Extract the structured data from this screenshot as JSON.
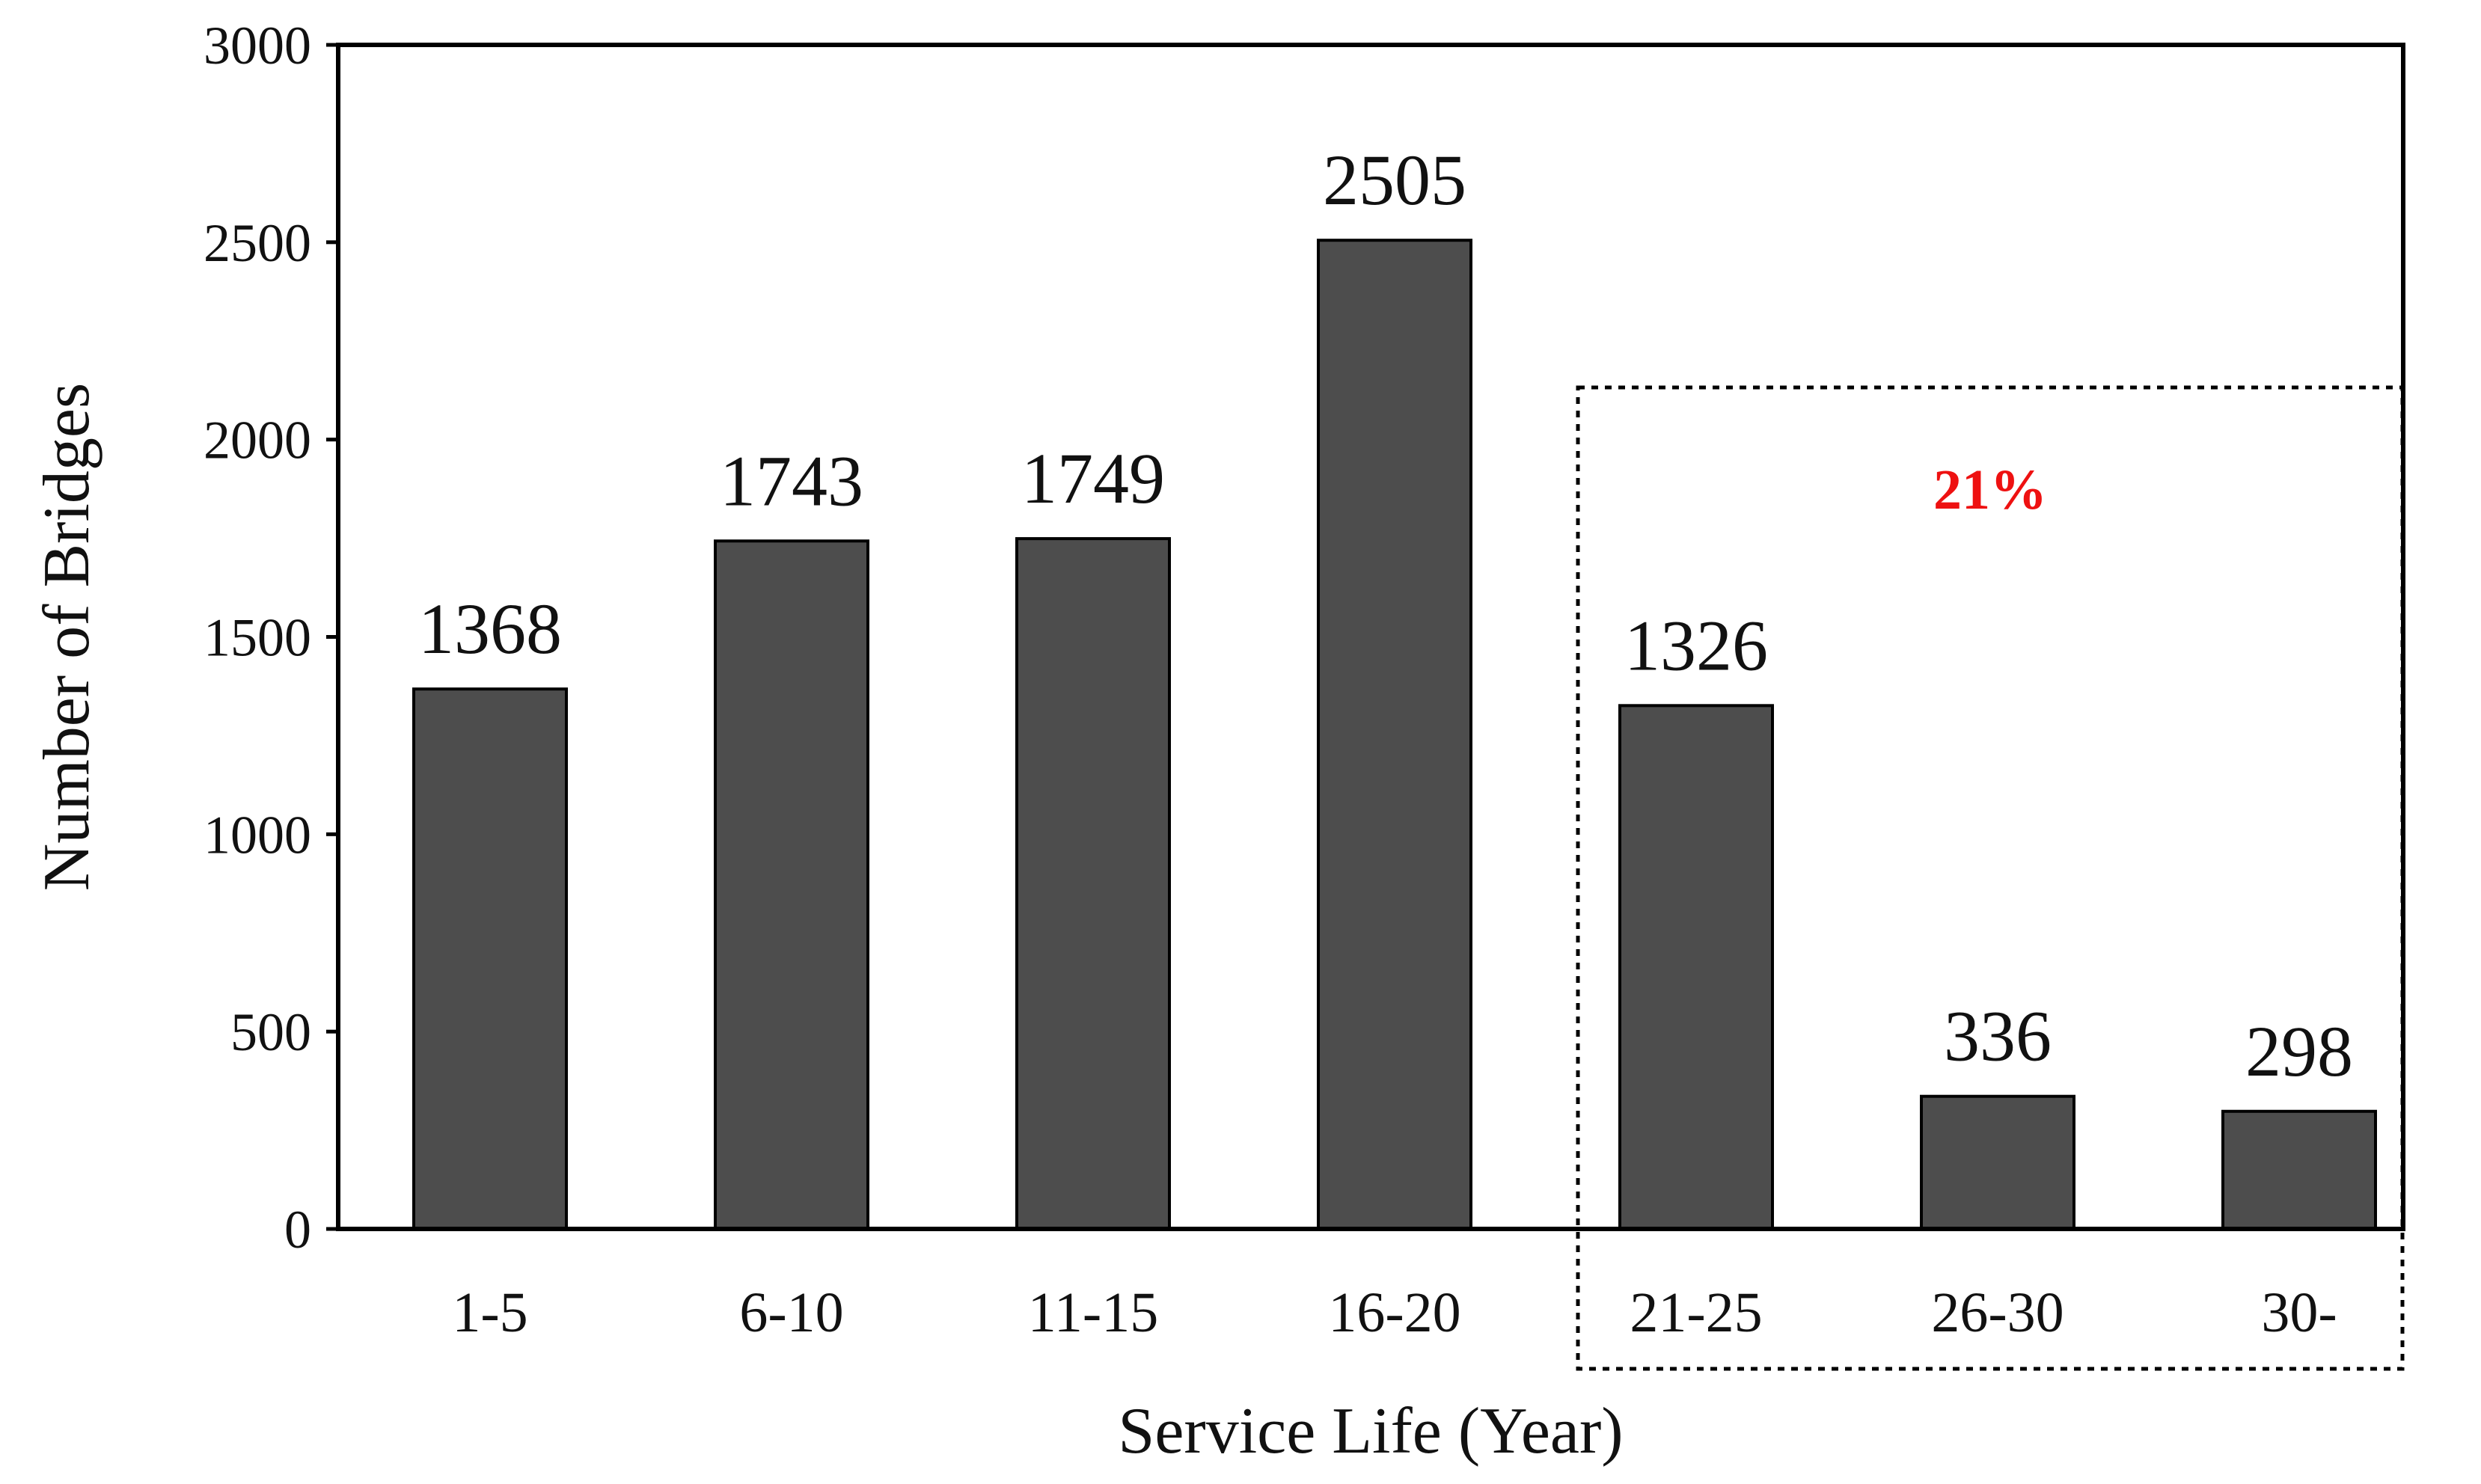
{
  "chart_data": {
    "type": "bar",
    "title": "",
    "xlabel": "Service Life (Year)",
    "ylabel": "Number of Bridges",
    "categories": [
      "1-5",
      "6-10",
      "11-15",
      "16-20",
      "21-25",
      "26-30",
      "30-"
    ],
    "values": [
      1368,
      1743,
      1749,
      2505,
      1326,
      336,
      298
    ],
    "data_labels": [
      "1368",
      "1743",
      "1749",
      "2505",
      "1326",
      "336",
      "298"
    ],
    "ylim": [
      0,
      3000
    ],
    "yticks": [
      0,
      500,
      1000,
      1500,
      2000,
      2500,
      3000
    ],
    "ytick_labels": [
      "0",
      "500",
      "1000",
      "1500",
      "2000",
      "2500",
      "3000"
    ],
    "grid": false,
    "legend": "none",
    "bar_color": "#4d4d4d",
    "annotation": {
      "text": "21%",
      "color": "#ee1111",
      "style": "dotted box",
      "covers_categories": [
        "21-25",
        "26-30",
        "30-"
      ]
    }
  }
}
